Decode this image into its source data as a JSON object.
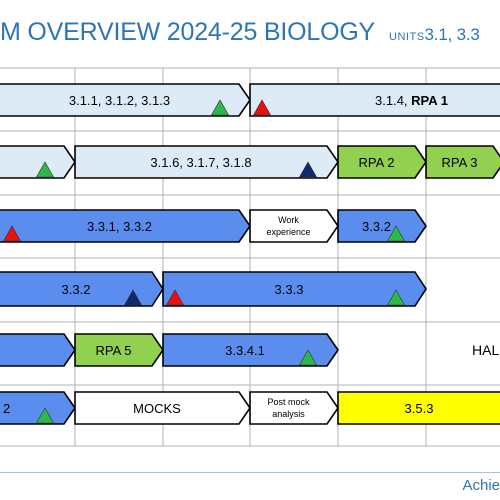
{
  "header": {
    "title": "M OVERVIEW 2024-25 BIOLOGY",
    "units_prefix": "UNITS",
    "units_value": "3.1, 3.3"
  },
  "colors": {
    "light_blue": "#DDEBF7",
    "mid_blue": "#5B8DEF",
    "green": "#92D050",
    "yellow": "#FFFF00",
    "white": "#FFFFFF",
    "triangle_green": "#2DB84B",
    "triangle_red": "#E81010",
    "triangle_navy": "#102A6B",
    "grid_line": "#B0B0B0"
  },
  "rows": [
    {
      "items": [
        {
          "label": "3.1.1, 3.1.2, 3.1.3",
          "color": "light_blue",
          "marker": "green"
        },
        {
          "label": "3.1.4, ",
          "bold": "RPA 1",
          "color": "light_blue",
          "marker_left": "red"
        }
      ]
    },
    {
      "items": [
        {
          "label": "",
          "color": "light_blue",
          "marker": "green"
        },
        {
          "label": "3.1.6, 3.1.7, 3.1.8",
          "color": "light_blue",
          "marker": "navy"
        },
        {
          "label": "RPA 2",
          "color": "green"
        },
        {
          "label": "RPA 3",
          "color": "green"
        }
      ]
    },
    {
      "items": [
        {
          "label": "3.3.1, 3.3.2",
          "color": "mid_blue",
          "marker_left": "red"
        },
        {
          "label": "Work experience",
          "color": "white"
        },
        {
          "label": "3.3.2",
          "color": "mid_blue",
          "marker": "green"
        }
      ]
    },
    {
      "items": [
        {
          "label": "3.3.2",
          "color": "mid_blue",
          "marker": "navy"
        },
        {
          "label": "3.3.3",
          "color": "mid_blue",
          "marker_left": "red",
          "marker": "green"
        }
      ]
    },
    {
      "items": [
        {
          "label": "",
          "color": "mid_blue"
        },
        {
          "label": "RPA 5",
          "color": "green"
        },
        {
          "label": "3.3.4.1",
          "color": "mid_blue",
          "marker": "green"
        },
        {
          "label": "HAL",
          "color": "none"
        }
      ]
    },
    {
      "items": [
        {
          "label": "2",
          "color": "mid_blue",
          "marker": "green"
        },
        {
          "label": "MOCKS",
          "color": "white"
        },
        {
          "label": "Post mock analysis",
          "color": "white"
        },
        {
          "label": "3.5.3",
          "color": "yellow"
        }
      ]
    }
  ],
  "footer": {
    "text": "Achie"
  }
}
